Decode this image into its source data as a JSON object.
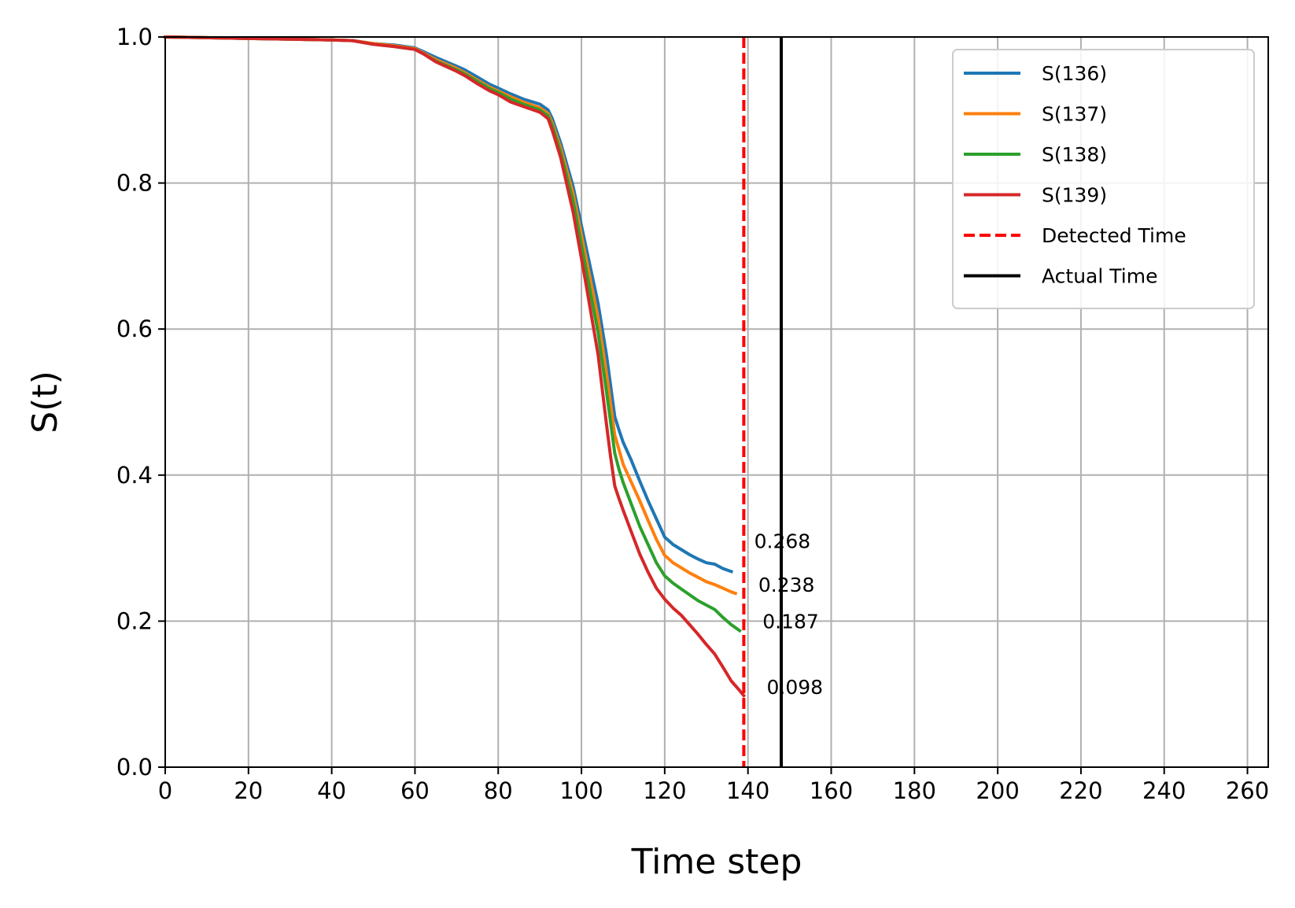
{
  "chart_data": {
    "type": "line",
    "xlabel": "Time step",
    "ylabel": "S(t)",
    "xlim": [
      0,
      265
    ],
    "ylim": [
      0,
      1.0
    ],
    "x_ticks": [
      0,
      20,
      40,
      60,
      80,
      100,
      120,
      140,
      160,
      180,
      200,
      220,
      240,
      260
    ],
    "y_ticks": [
      0.0,
      0.2,
      0.4,
      0.6,
      0.8,
      1.0
    ],
    "y_tick_labels": [
      "0.0",
      "0.2",
      "0.4",
      "0.6",
      "0.8",
      "1.0"
    ],
    "grid": true,
    "legend_position": "top-right",
    "series": [
      {
        "name": "S(136)",
        "color": "#1f77b4",
        "x": [
          0,
          20,
          40,
          45,
          50,
          55,
          60,
          62,
          65,
          70,
          72,
          75,
          78,
          80,
          83,
          86,
          90,
          92,
          93,
          95,
          98,
          101,
          104,
          106,
          108,
          109,
          110,
          112,
          114,
          116,
          118,
          120,
          121,
          122,
          124,
          126,
          128,
          130,
          132,
          134,
          136
        ],
        "y": [
          1.0,
          0.998,
          0.996,
          0.995,
          0.991,
          0.989,
          0.985,
          0.98,
          0.972,
          0.96,
          0.955,
          0.945,
          0.935,
          0.93,
          0.922,
          0.915,
          0.908,
          0.9,
          0.888,
          0.855,
          0.795,
          0.715,
          0.635,
          0.565,
          0.48,
          0.462,
          0.445,
          0.42,
          0.392,
          0.365,
          0.34,
          0.315,
          0.31,
          0.305,
          0.298,
          0.291,
          0.285,
          0.28,
          0.278,
          0.272,
          0.268
        ]
      },
      {
        "name": "S(137)",
        "color": "#ff7f0e",
        "x": [
          0,
          20,
          40,
          45,
          50,
          55,
          60,
          62,
          65,
          70,
          72,
          75,
          78,
          80,
          83,
          86,
          90,
          92,
          93,
          95,
          98,
          101,
          104,
          106,
          108,
          109,
          110,
          112,
          114,
          116,
          118,
          120,
          121,
          122,
          124,
          126,
          128,
          130,
          132,
          134,
          136,
          137
        ],
        "y": [
          1.0,
          0.998,
          0.996,
          0.995,
          0.991,
          0.988,
          0.984,
          0.978,
          0.969,
          0.957,
          0.951,
          0.941,
          0.931,
          0.926,
          0.918,
          0.911,
          0.903,
          0.895,
          0.882,
          0.848,
          0.785,
          0.7,
          0.615,
          0.54,
          0.455,
          0.435,
          0.415,
          0.39,
          0.365,
          0.338,
          0.312,
          0.29,
          0.285,
          0.28,
          0.273,
          0.266,
          0.26,
          0.254,
          0.25,
          0.245,
          0.24,
          0.238
        ]
      },
      {
        "name": "S(138)",
        "color": "#2ca02c",
        "x": [
          0,
          20,
          40,
          45,
          50,
          55,
          60,
          62,
          65,
          70,
          72,
          75,
          78,
          80,
          83,
          86,
          90,
          92,
          93,
          95,
          98,
          101,
          104,
          106,
          108,
          109,
          110,
          112,
          114,
          116,
          118,
          120,
          121,
          122,
          124,
          126,
          128,
          130,
          132,
          134,
          136,
          138
        ],
        "y": [
          1.0,
          0.998,
          0.996,
          0.995,
          0.99,
          0.987,
          0.983,
          0.977,
          0.967,
          0.955,
          0.949,
          0.939,
          0.929,
          0.924,
          0.915,
          0.908,
          0.9,
          0.892,
          0.878,
          0.842,
          0.775,
          0.685,
          0.595,
          0.515,
          0.43,
          0.408,
          0.39,
          0.36,
          0.33,
          0.305,
          0.28,
          0.262,
          0.257,
          0.252,
          0.244,
          0.236,
          0.228,
          0.222,
          0.216,
          0.205,
          0.195,
          0.187
        ]
      },
      {
        "name": "S(139)",
        "color": "#d62728",
        "x": [
          0,
          20,
          40,
          45,
          50,
          55,
          60,
          62,
          65,
          70,
          72,
          75,
          78,
          80,
          83,
          86,
          90,
          92,
          93,
          95,
          98,
          101,
          104,
          106,
          107,
          108,
          109,
          110,
          112,
          114,
          116,
          118,
          120,
          121,
          122,
          124,
          126,
          128,
          130,
          132,
          134,
          136,
          138,
          139
        ],
        "y": [
          1.0,
          0.998,
          0.996,
          0.995,
          0.99,
          0.987,
          0.983,
          0.977,
          0.966,
          0.953,
          0.947,
          0.936,
          0.926,
          0.921,
          0.911,
          0.905,
          0.897,
          0.888,
          0.872,
          0.835,
          0.76,
          0.665,
          0.565,
          0.47,
          0.425,
          0.385,
          0.368,
          0.352,
          0.322,
          0.292,
          0.267,
          0.245,
          0.23,
          0.224,
          0.218,
          0.208,
          0.195,
          0.182,
          0.168,
          0.155,
          0.137,
          0.118,
          0.105,
          0.098
        ]
      }
    ],
    "annotations": [
      {
        "text": "0.268",
        "x": 141.5,
        "y": 0.31
      },
      {
        "text": "0.238",
        "x": 142.5,
        "y": 0.25
      },
      {
        "text": "0.187",
        "x": 143.5,
        "y": 0.2
      },
      {
        "text": "0.098",
        "x": 144.5,
        "y": 0.11
      }
    ],
    "vlines": [
      {
        "name": "Detected Time",
        "x": 139,
        "color": "#ff0000",
        "style": "dashed"
      },
      {
        "name": "Actual Time",
        "x": 148,
        "color": "#000000",
        "style": "solid"
      }
    ]
  }
}
